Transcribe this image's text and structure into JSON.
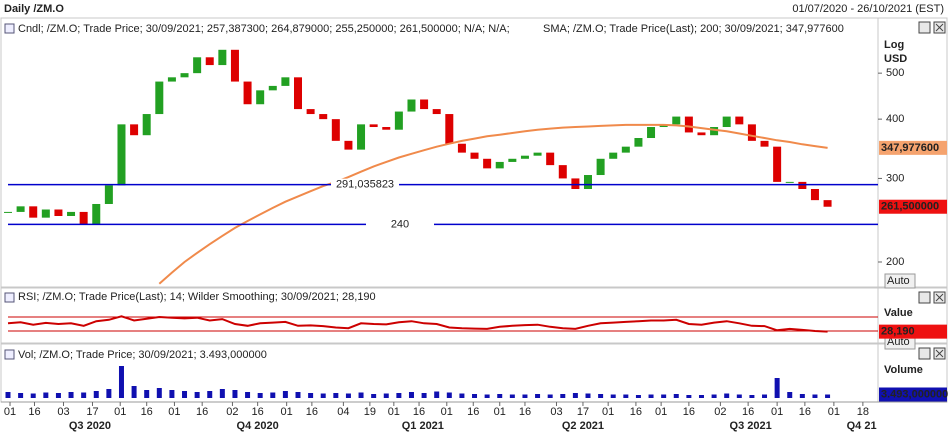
{
  "header": {
    "title": "Daily /ZM.O",
    "range": "01/07/2020 - 26/10/2021 (EST)"
  },
  "chart_data": [
    {
      "type": "candlestick",
      "x": [
        0,
        1,
        2,
        3,
        4,
        5,
        6,
        7,
        8,
        9,
        10,
        11,
        12,
        13,
        14,
        15,
        16,
        17,
        18,
        19,
        20,
        21,
        22,
        23,
        24,
        25,
        26,
        27,
        28,
        29,
        30,
        31,
        32,
        33,
        34,
        35,
        36,
        37,
        38,
        39,
        40,
        41,
        42,
        43,
        44,
        45,
        46,
        47,
        48,
        49,
        50,
        51,
        52,
        53,
        54,
        55,
        56,
        57,
        58,
        59,
        60,
        61,
        62,
        63,
        64,
        65
      ],
      "xlim": [
        0,
        69
      ],
      "series": [
        {
          "name": "Cndl; /ZM.O; Trade Price; 30/09/2021; 257,387300; 264,879000; 255,250000; 261,500000; N/A; N/A;",
          "color": "#cc0000",
          "up_color": "#22a022",
          "down_color": "#dd0000",
          "values": [
            255,
            262,
            248,
            258,
            250,
            255,
            240,
            265,
            290,
            390,
            370,
            410,
            480,
            490,
            500,
            540,
            520,
            560,
            480,
            430,
            460,
            470,
            490,
            420,
            410,
            400,
            360,
            345,
            390,
            385,
            380,
            415,
            440,
            420,
            410,
            355,
            340,
            330,
            315,
            325,
            330,
            335,
            340,
            320,
            300,
            285,
            305,
            330,
            340,
            350,
            365,
            385,
            390,
            405,
            375,
            370,
            385,
            405,
            390,
            360,
            350,
            295,
            295,
            285,
            270,
            261.5
          ]
        },
        {
          "name": "SMA; /ZM.O; Trade Price(Last);  200;  30/09/2021;  347,977600",
          "color": "#f08a4b",
          "values": [
            null,
            null,
            null,
            null,
            null,
            null,
            null,
            null,
            null,
            null,
            null,
            null,
            180,
            190,
            200,
            209,
            218,
            227,
            236,
            244,
            252,
            260,
            268,
            275,
            282,
            289,
            295,
            302,
            310,
            318,
            325,
            332,
            338,
            344,
            350,
            355,
            360,
            364,
            368,
            371,
            374,
            377,
            380,
            382,
            384,
            385,
            386,
            387,
            388,
            389,
            389,
            389,
            389,
            388,
            386,
            383,
            380,
            377,
            373,
            369,
            365,
            361,
            358,
            354,
            351,
            347.9776
          ]
        }
      ],
      "ylim": [
        178,
        593
      ],
      "yticks": [
        200,
        300,
        400,
        500
      ],
      "log": true,
      "axis_labels": [
        "Log",
        "USD"
      ],
      "auto_label": "Auto",
      "hlines": [
        {
          "value": 291.035823,
          "label": "291,035823"
        },
        240
      ],
      "hline_color": "#0000cc",
      "tags": [
        {
          "value": 347.9776,
          "label": "347,977600",
          "color": "#f5a36e"
        },
        {
          "value": 261.5,
          "label": "261,500000",
          "color": "#ee1111"
        }
      ]
    },
    {
      "type": "line",
      "x": [
        0,
        1,
        2,
        3,
        4,
        5,
        6,
        7,
        8,
        9,
        10,
        11,
        12,
        13,
        14,
        15,
        16,
        17,
        18,
        19,
        20,
        21,
        22,
        23,
        24,
        25,
        26,
        27,
        28,
        29,
        30,
        31,
        32,
        33,
        34,
        35,
        36,
        37,
        38,
        39,
        40,
        41,
        42,
        43,
        44,
        45,
        46,
        47,
        48,
        49,
        50,
        51,
        52,
        53,
        54,
        55,
        56,
        57,
        58,
        59,
        60,
        61,
        62,
        63,
        64,
        65
      ],
      "xlim": [
        0,
        69
      ],
      "series": [
        {
          "name": "RSI; /ZM.O; Trade Price(Last);  14;  Wilder Smoothing;  30/09/2021;  28,190",
          "color": "#cc0000",
          "values": [
            52,
            55,
            48,
            53,
            50,
            52,
            45,
            58,
            62,
            72,
            60,
            65,
            70,
            68,
            66,
            68,
            60,
            64,
            50,
            45,
            52,
            54,
            56,
            45,
            46,
            44,
            40,
            38,
            52,
            50,
            49,
            55,
            58,
            52,
            50,
            40,
            38,
            37,
            36,
            42,
            45,
            47,
            48,
            42,
            38,
            36,
            45,
            52,
            54,
            56,
            58,
            60,
            60,
            62,
            50,
            48,
            54,
            58,
            52,
            45,
            44,
            32,
            36,
            33,
            30,
            28.19
          ]
        }
      ],
      "ylim": [
        0,
        100
      ],
      "levels": [
        30,
        70
      ],
      "level_color": "#cc0000",
      "axis_labels": [
        "Value"
      ],
      "auto_label": "Auto",
      "tags": [
        {
          "value": 28.19,
          "label": "28,190",
          "color": "#ee1111"
        }
      ]
    },
    {
      "type": "bar",
      "x": [
        0,
        1,
        2,
        3,
        4,
        5,
        6,
        7,
        8,
        9,
        10,
        11,
        12,
        13,
        14,
        15,
        16,
        17,
        18,
        19,
        20,
        21,
        22,
        23,
        24,
        25,
        26,
        27,
        28,
        29,
        30,
        31,
        32,
        33,
        34,
        35,
        36,
        37,
        38,
        39,
        40,
        41,
        42,
        43,
        44,
        45,
        46,
        47,
        48,
        49,
        50,
        51,
        52,
        53,
        54,
        55,
        56,
        57,
        58,
        59,
        60,
        61,
        62,
        63,
        64,
        65
      ],
      "xlim": [
        0,
        69
      ],
      "series": [
        {
          "name": "Vol; /ZM.O; Trade Price;  30/09/2021;  3.493,000000",
          "color": "#1010b0",
          "values": [
            6000000,
            5000000,
            4500000,
            5500000,
            5000000,
            6000000,
            5500000,
            7000000,
            9000000,
            32000000,
            12000000,
            8000000,
            10000000,
            8000000,
            7000000,
            6000000,
            7000000,
            9000000,
            8000000,
            6000000,
            5000000,
            5500000,
            7000000,
            6000000,
            5000000,
            4500000,
            5000000,
            4500000,
            5500000,
            4000000,
            4500000,
            5000000,
            6000000,
            5000000,
            6500000,
            5500000,
            4500000,
            4000000,
            3500000,
            4000000,
            3500000,
            3500000,
            4000000,
            3500000,
            4000000,
            5000000,
            4500000,
            4000000,
            3500000,
            3500000,
            3000000,
            3500000,
            3500000,
            4000000,
            3000000,
            3000000,
            3500000,
            4500000,
            3500000,
            3000000,
            3500000,
            20000000,
            6000000,
            4000000,
            3500000,
            3493000
          ]
        }
      ],
      "ylim": [
        0,
        40000000
      ],
      "axis_labels": [
        "Volume"
      ],
      "tags": [
        {
          "value": 3493000,
          "label": "3.493,000000",
          "color": "#1010b0"
        }
      ],
      "xticks": [
        {
          "value": 0.16,
          "label": "01"
        },
        {
          "value": 2.1,
          "label": "16"
        },
        {
          "value": 4.4,
          "label": "03"
        },
        {
          "value": 6.7,
          "label": "17"
        },
        {
          "value": 8.9,
          "label": "01"
        },
        {
          "value": 11,
          "label": "16"
        },
        {
          "value": 13.2,
          "label": "01"
        },
        {
          "value": 15.4,
          "label": "16"
        },
        {
          "value": 17.8,
          "label": "02"
        },
        {
          "value": 19.8,
          "label": "16"
        },
        {
          "value": 22.1,
          "label": "01"
        },
        {
          "value": 24.1,
          "label": "16"
        },
        {
          "value": 26.6,
          "label": "04"
        },
        {
          "value": 28.7,
          "label": "19"
        },
        {
          "value": 30.6,
          "label": "01"
        },
        {
          "value": 32.6,
          "label": "16"
        },
        {
          "value": 34.8,
          "label": "01"
        },
        {
          "value": 36.9,
          "label": "16"
        },
        {
          "value": 39,
          "label": "01"
        },
        {
          "value": 41,
          "label": "16"
        },
        {
          "value": 43.5,
          "label": "03"
        },
        {
          "value": 45.6,
          "label": "17"
        },
        {
          "value": 47.6,
          "label": "01"
        },
        {
          "value": 49.8,
          "label": "16"
        },
        {
          "value": 51.8,
          "label": "01"
        },
        {
          "value": 54,
          "label": "16"
        },
        {
          "value": 56.5,
          "label": "02"
        },
        {
          "value": 58.7,
          "label": "16"
        },
        {
          "value": 61,
          "label": "01"
        },
        {
          "value": 63.2,
          "label": "16"
        },
        {
          "value": 65.5,
          "label": "01"
        },
        {
          "value": 67.8,
          "label": "18"
        }
      ],
      "xperiods": [
        {
          "value": 6.5,
          "label": "Q3 2020"
        },
        {
          "value": 19.8,
          "label": "Q4 2020"
        },
        {
          "value": 32.9,
          "label": "Q1 2021"
        },
        {
          "value": 45.6,
          "label": "Q2 2021"
        },
        {
          "value": 58.9,
          "label": "Q3 2021"
        },
        {
          "value": 67.7,
          "label": "Q4 21"
        }
      ]
    }
  ]
}
